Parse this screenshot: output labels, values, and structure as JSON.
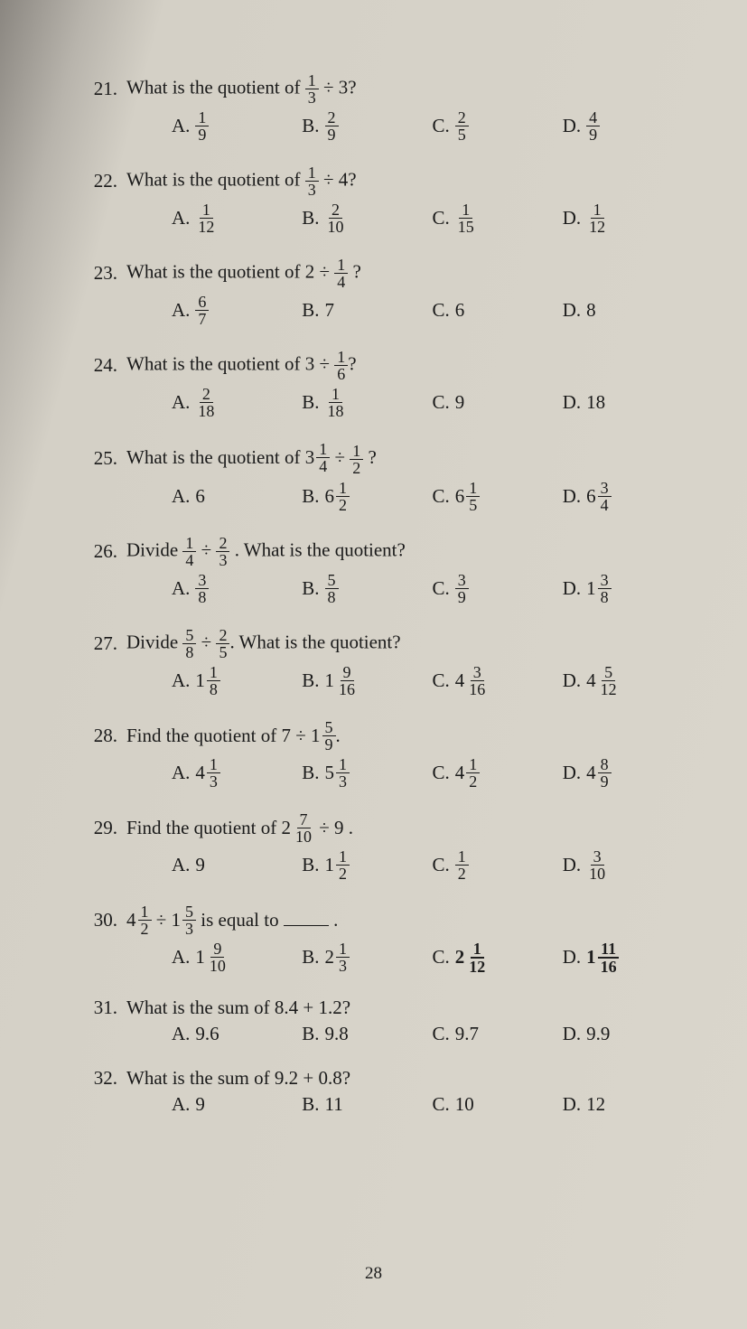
{
  "page_number": "28",
  "questions": [
    {
      "num": "21.",
      "stem_parts": [
        "What is the quotient of ",
        {
          "frac": [
            "1",
            "3"
          ]
        },
        " ÷ 3?"
      ],
      "choices": [
        {
          "label": "A.",
          "val": {
            "frac": [
              "1",
              "9"
            ]
          }
        },
        {
          "label": "B.",
          "val": {
            "frac": [
              "2",
              "9"
            ]
          }
        },
        {
          "label": "C.",
          "val": {
            "frac": [
              "2",
              "5"
            ]
          }
        },
        {
          "label": "D.",
          "val": {
            "frac": [
              "4",
              "9"
            ]
          }
        }
      ]
    },
    {
      "num": "22.",
      "stem_parts": [
        "What is the quotient of ",
        {
          "frac": [
            "1",
            "3"
          ]
        },
        " ÷ 4?"
      ],
      "choices": [
        {
          "label": "A.",
          "val": {
            "frac": [
              "1",
              "12"
            ]
          }
        },
        {
          "label": "B.",
          "val": {
            "frac": [
              "2",
              "10"
            ]
          }
        },
        {
          "label": "C.",
          "val": {
            "frac": [
              "1",
              "15"
            ]
          }
        },
        {
          "label": "D.",
          "val": {
            "frac": [
              "1",
              "12"
            ]
          }
        }
      ]
    },
    {
      "num": "23.",
      "stem_parts": [
        "What is the quotient of 2 ÷ ",
        {
          "frac": [
            "1",
            "4"
          ]
        },
        "    ?"
      ],
      "choices": [
        {
          "label": "A.",
          "val": {
            "frac": [
              "6",
              "7"
            ]
          }
        },
        {
          "label": "B.",
          "val": {
            "text": "7"
          }
        },
        {
          "label": "C.",
          "val": {
            "text": "6"
          }
        },
        {
          "label": "D.",
          "val": {
            "text": "8"
          }
        }
      ]
    },
    {
      "num": "24.",
      "stem_parts": [
        "What is the quotient of 3  ÷ ",
        {
          "frac": [
            "1",
            "6"
          ]
        },
        "?"
      ],
      "choices": [
        {
          "label": "A.",
          "val": {
            "frac": [
              "2",
              "18"
            ]
          }
        },
        {
          "label": "B.",
          "val": {
            "frac": [
              "1",
              "18"
            ]
          }
        },
        {
          "label": "C.",
          "val": {
            "text": "9"
          }
        },
        {
          "label": "D.",
          "val": {
            "text": "18"
          }
        }
      ]
    },
    {
      "num": "25.",
      "stem_parts": [
        "What is the quotient of  ",
        {
          "mixed": [
            "3",
            "1",
            "4"
          ]
        },
        " ÷ ",
        {
          "frac": [
            "1",
            "2"
          ]
        },
        " ?"
      ],
      "choices": [
        {
          "label": "A.",
          "val": {
            "text": "6"
          }
        },
        {
          "label": "B.",
          "val": {
            "mixed": [
              "6",
              "1",
              "2"
            ]
          }
        },
        {
          "label": "C.",
          "val": {
            "mixed": [
              "6",
              "1",
              "5"
            ]
          }
        },
        {
          "label": "D.",
          "val": {
            "mixed": [
              "6",
              "3",
              "4"
            ]
          }
        }
      ]
    },
    {
      "num": "26.",
      "stem_parts": [
        "Divide ",
        {
          "frac": [
            "1",
            "4"
          ]
        },
        " ÷ ",
        {
          "frac": [
            "2",
            "3"
          ]
        },
        " .  What is the quotient?"
      ],
      "choices": [
        {
          "label": "A.",
          "val": {
            "frac": [
              "3",
              "8"
            ]
          }
        },
        {
          "label": "B.",
          "val": {
            "frac": [
              "5",
              "8"
            ]
          }
        },
        {
          "label": "C.",
          "val": {
            "frac": [
              "3",
              "9"
            ]
          }
        },
        {
          "label": "D.",
          "val": {
            "mixed": [
              "1",
              "3",
              "8"
            ]
          }
        }
      ]
    },
    {
      "num": "27.",
      "stem_parts": [
        "Divide ",
        {
          "frac": [
            "5",
            "8"
          ]
        },
        " ÷ ",
        {
          "frac": [
            "2",
            "5"
          ]
        },
        ".  What is the quotient?"
      ],
      "choices": [
        {
          "label": "A.",
          "val": {
            "mixed": [
              "1",
              "1",
              "8"
            ]
          }
        },
        {
          "label": "B.",
          "val": {
            "mixed": [
              "1",
              "9",
              "16"
            ]
          }
        },
        {
          "label": "C.",
          "val": {
            "mixed": [
              "4",
              "3",
              "16"
            ]
          }
        },
        {
          "label": "D.",
          "val": {
            "mixed": [
              "4",
              "5",
              "12"
            ]
          }
        }
      ]
    },
    {
      "num": "28.",
      "stem_parts": [
        "Find the quotient of 7  ÷  ",
        {
          "mixed": [
            "1",
            "5",
            "9"
          ]
        },
        "."
      ],
      "choices": [
        {
          "label": "A.",
          "val": {
            "mixed": [
              "4",
              "1",
              "3"
            ]
          }
        },
        {
          "label": "B.",
          "val": {
            "mixed": [
              "5",
              "1",
              "3"
            ]
          }
        },
        {
          "label": "C.",
          "val": {
            "mixed": [
              "4",
              "1",
              "2"
            ]
          }
        },
        {
          "label": "D.",
          "val": {
            "mixed": [
              "4",
              "8",
              "9"
            ]
          }
        }
      ]
    },
    {
      "num": "29.",
      "stem_parts": [
        "Find the quotient of ",
        {
          "mixed": [
            "2",
            "7",
            "10"
          ]
        },
        " ÷ 9 ."
      ],
      "choices": [
        {
          "label": "A.",
          "val": {
            "text": "9"
          }
        },
        {
          "label": "B.",
          "val": {
            "mixed": [
              "1",
              "1",
              "2"
            ]
          }
        },
        {
          "label": "C.",
          "val": {
            "frac": [
              "1",
              "2"
            ]
          }
        },
        {
          "label": "D.",
          "val": {
            "frac": [
              "3",
              "10"
            ]
          }
        }
      ]
    },
    {
      "num": "30.",
      "stem_parts": [
        {
          "mixed": [
            "4",
            "1",
            "2"
          ]
        },
        " ÷ ",
        {
          "mixed": [
            "1",
            "5",
            "3"
          ]
        },
        "  is equal to ",
        {
          "blank": true
        },
        " ."
      ],
      "choices": [
        {
          "label": "A.",
          "val": {
            "mixed": [
              "1",
              "9",
              "10"
            ]
          }
        },
        {
          "label": "B.",
          "val": {
            "mixed": [
              "2",
              "1",
              "3"
            ]
          }
        },
        {
          "label": "C.",
          "val": {
            "hand_mixed": [
              "2",
              "1",
              "12"
            ]
          }
        },
        {
          "label": "D.",
          "val": {
            "hand_mixed": [
              "1",
              "11",
              "16"
            ]
          }
        }
      ]
    },
    {
      "num": "31.",
      "stem_parts": [
        "What is the sum of 8.4  +  1.2?"
      ],
      "choices": [
        {
          "label": "A.",
          "val": {
            "text": "9.6"
          }
        },
        {
          "label": "B.",
          "val": {
            "text": "9.8"
          }
        },
        {
          "label": "C.",
          "val": {
            "text": "9.7"
          }
        },
        {
          "label": "D.",
          "val": {
            "text": "9.9"
          }
        }
      ]
    },
    {
      "num": "32.",
      "stem_parts": [
        "What is the sum of 9.2  +  0.8?"
      ],
      "choices": [
        {
          "label": "A.",
          "val": {
            "text": "9"
          }
        },
        {
          "label": "B.",
          "val": {
            "text": "11"
          }
        },
        {
          "label": "C.",
          "val": {
            "text": "10"
          }
        },
        {
          "label": "D.",
          "val": {
            "text": "12"
          }
        }
      ]
    }
  ]
}
